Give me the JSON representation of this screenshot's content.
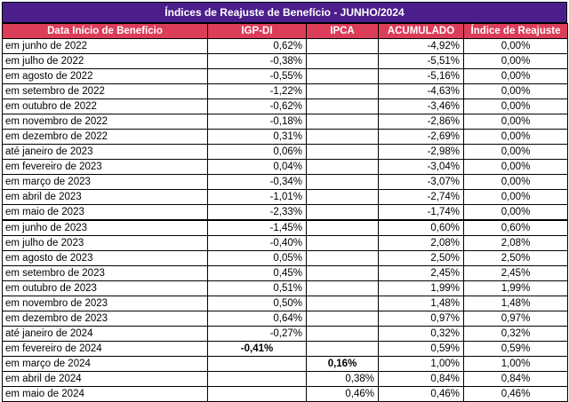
{
  "title": "Índices de Reajuste de Benefício - JUNHO/2024",
  "columns": [
    "Data Início de Benefício",
    "IGP-DI",
    "IPCA",
    "ACUMULADO",
    "Índice de Reajuste"
  ],
  "rows": [
    {
      "date": "em junho de 2022",
      "igp": "0,62%",
      "ipca": "",
      "acum": "-4,92%",
      "indice": "0,00%"
    },
    {
      "date": "em julho de 2022",
      "igp": "-0,38%",
      "ipca": "",
      "acum": "-5,51%",
      "indice": "0,00%"
    },
    {
      "date": "em agosto de 2022",
      "igp": "-0,55%",
      "ipca": "",
      "acum": "-5,16%",
      "indice": "0,00%"
    },
    {
      "date": "em setembro de 2022",
      "igp": "-1,22%",
      "ipca": "",
      "acum": "-4,63%",
      "indice": "0,00%"
    },
    {
      "date": "em outubro de 2022",
      "igp": "-0,62%",
      "ipca": "",
      "acum": "-3,46%",
      "indice": "0,00%"
    },
    {
      "date": "em novembro de 2022",
      "igp": "-0,18%",
      "ipca": "",
      "acum": "-2,86%",
      "indice": "0,00%"
    },
    {
      "date": "em dezembro de 2022",
      "igp": "0,31%",
      "ipca": "",
      "acum": "-2,69%",
      "indice": "0,00%"
    },
    {
      "date": "até janeiro de 2023",
      "igp": "0,06%",
      "ipca": "",
      "acum": "-2,98%",
      "indice": "0,00%"
    },
    {
      "date": "em fevereiro de 2023",
      "igp": "0,04%",
      "ipca": "",
      "acum": "-3,04%",
      "indice": "0,00%"
    },
    {
      "date": "em março de 2023",
      "igp": "-0,34%",
      "ipca": "",
      "acum": "-3,07%",
      "indice": "0,00%"
    },
    {
      "date": "em abril de 2023",
      "igp": "-1,01%",
      "ipca": "",
      "acum": "-2,74%",
      "indice": "0,00%"
    },
    {
      "date": "em maio de 2023",
      "igp": "-2,33%",
      "ipca": "",
      "acum": "-1,74%",
      "indice": "0,00%"
    },
    {
      "date": "em junho de 2023",
      "igp": "-1,45%",
      "ipca": "",
      "acum": "0,60%",
      "indice": "0,60%"
    },
    {
      "date": "em julho de 2023",
      "igp": "-0,40%",
      "ipca": "",
      "acum": "2,08%",
      "indice": "2,08%"
    },
    {
      "date": "em agosto de 2023",
      "igp": "0,05%",
      "ipca": "",
      "acum": "2,50%",
      "indice": "2,50%"
    },
    {
      "date": "em setembro de 2023",
      "igp": "0,45%",
      "ipca": "",
      "acum": "2,45%",
      "indice": "2,45%"
    },
    {
      "date": "em outubro de 2023",
      "igp": "0,51%",
      "ipca": "",
      "acum": "1,99%",
      "indice": "1,99%"
    },
    {
      "date": "em novembro de 2023",
      "igp": "0,50%",
      "ipca": "",
      "acum": "1,48%",
      "indice": "1,48%"
    },
    {
      "date": "em dezembro de 2023",
      "igp": "0,64%",
      "ipca": "",
      "acum": "0,97%",
      "indice": "0,97%"
    },
    {
      "date": "até janeiro de 2024",
      "igp": "-0,27%",
      "ipca": "",
      "acum": "0,32%",
      "indice": "0,32%"
    },
    {
      "date": "em fevereiro de 2024",
      "igp": "-0,41%",
      "ipca": "",
      "acum": "0,59%",
      "indice": "0,59%"
    },
    {
      "date": "em março de 2024",
      "igp": "",
      "ipca": "0,16%",
      "acum": "1,00%",
      "indice": "1,00%"
    },
    {
      "date": "em abril de 2024",
      "igp": "",
      "ipca": "0,38%",
      "acum": "0,84%",
      "indice": "0,84%"
    },
    {
      "date": "em maio de 2024",
      "igp": "",
      "ipca": "0,46%",
      "acum": "0,46%",
      "indice": "0,46%"
    }
  ],
  "colors": {
    "title_bg": "#4b1e8c",
    "header_bg": "#dc3d59",
    "header_text": "#ffffff"
  }
}
